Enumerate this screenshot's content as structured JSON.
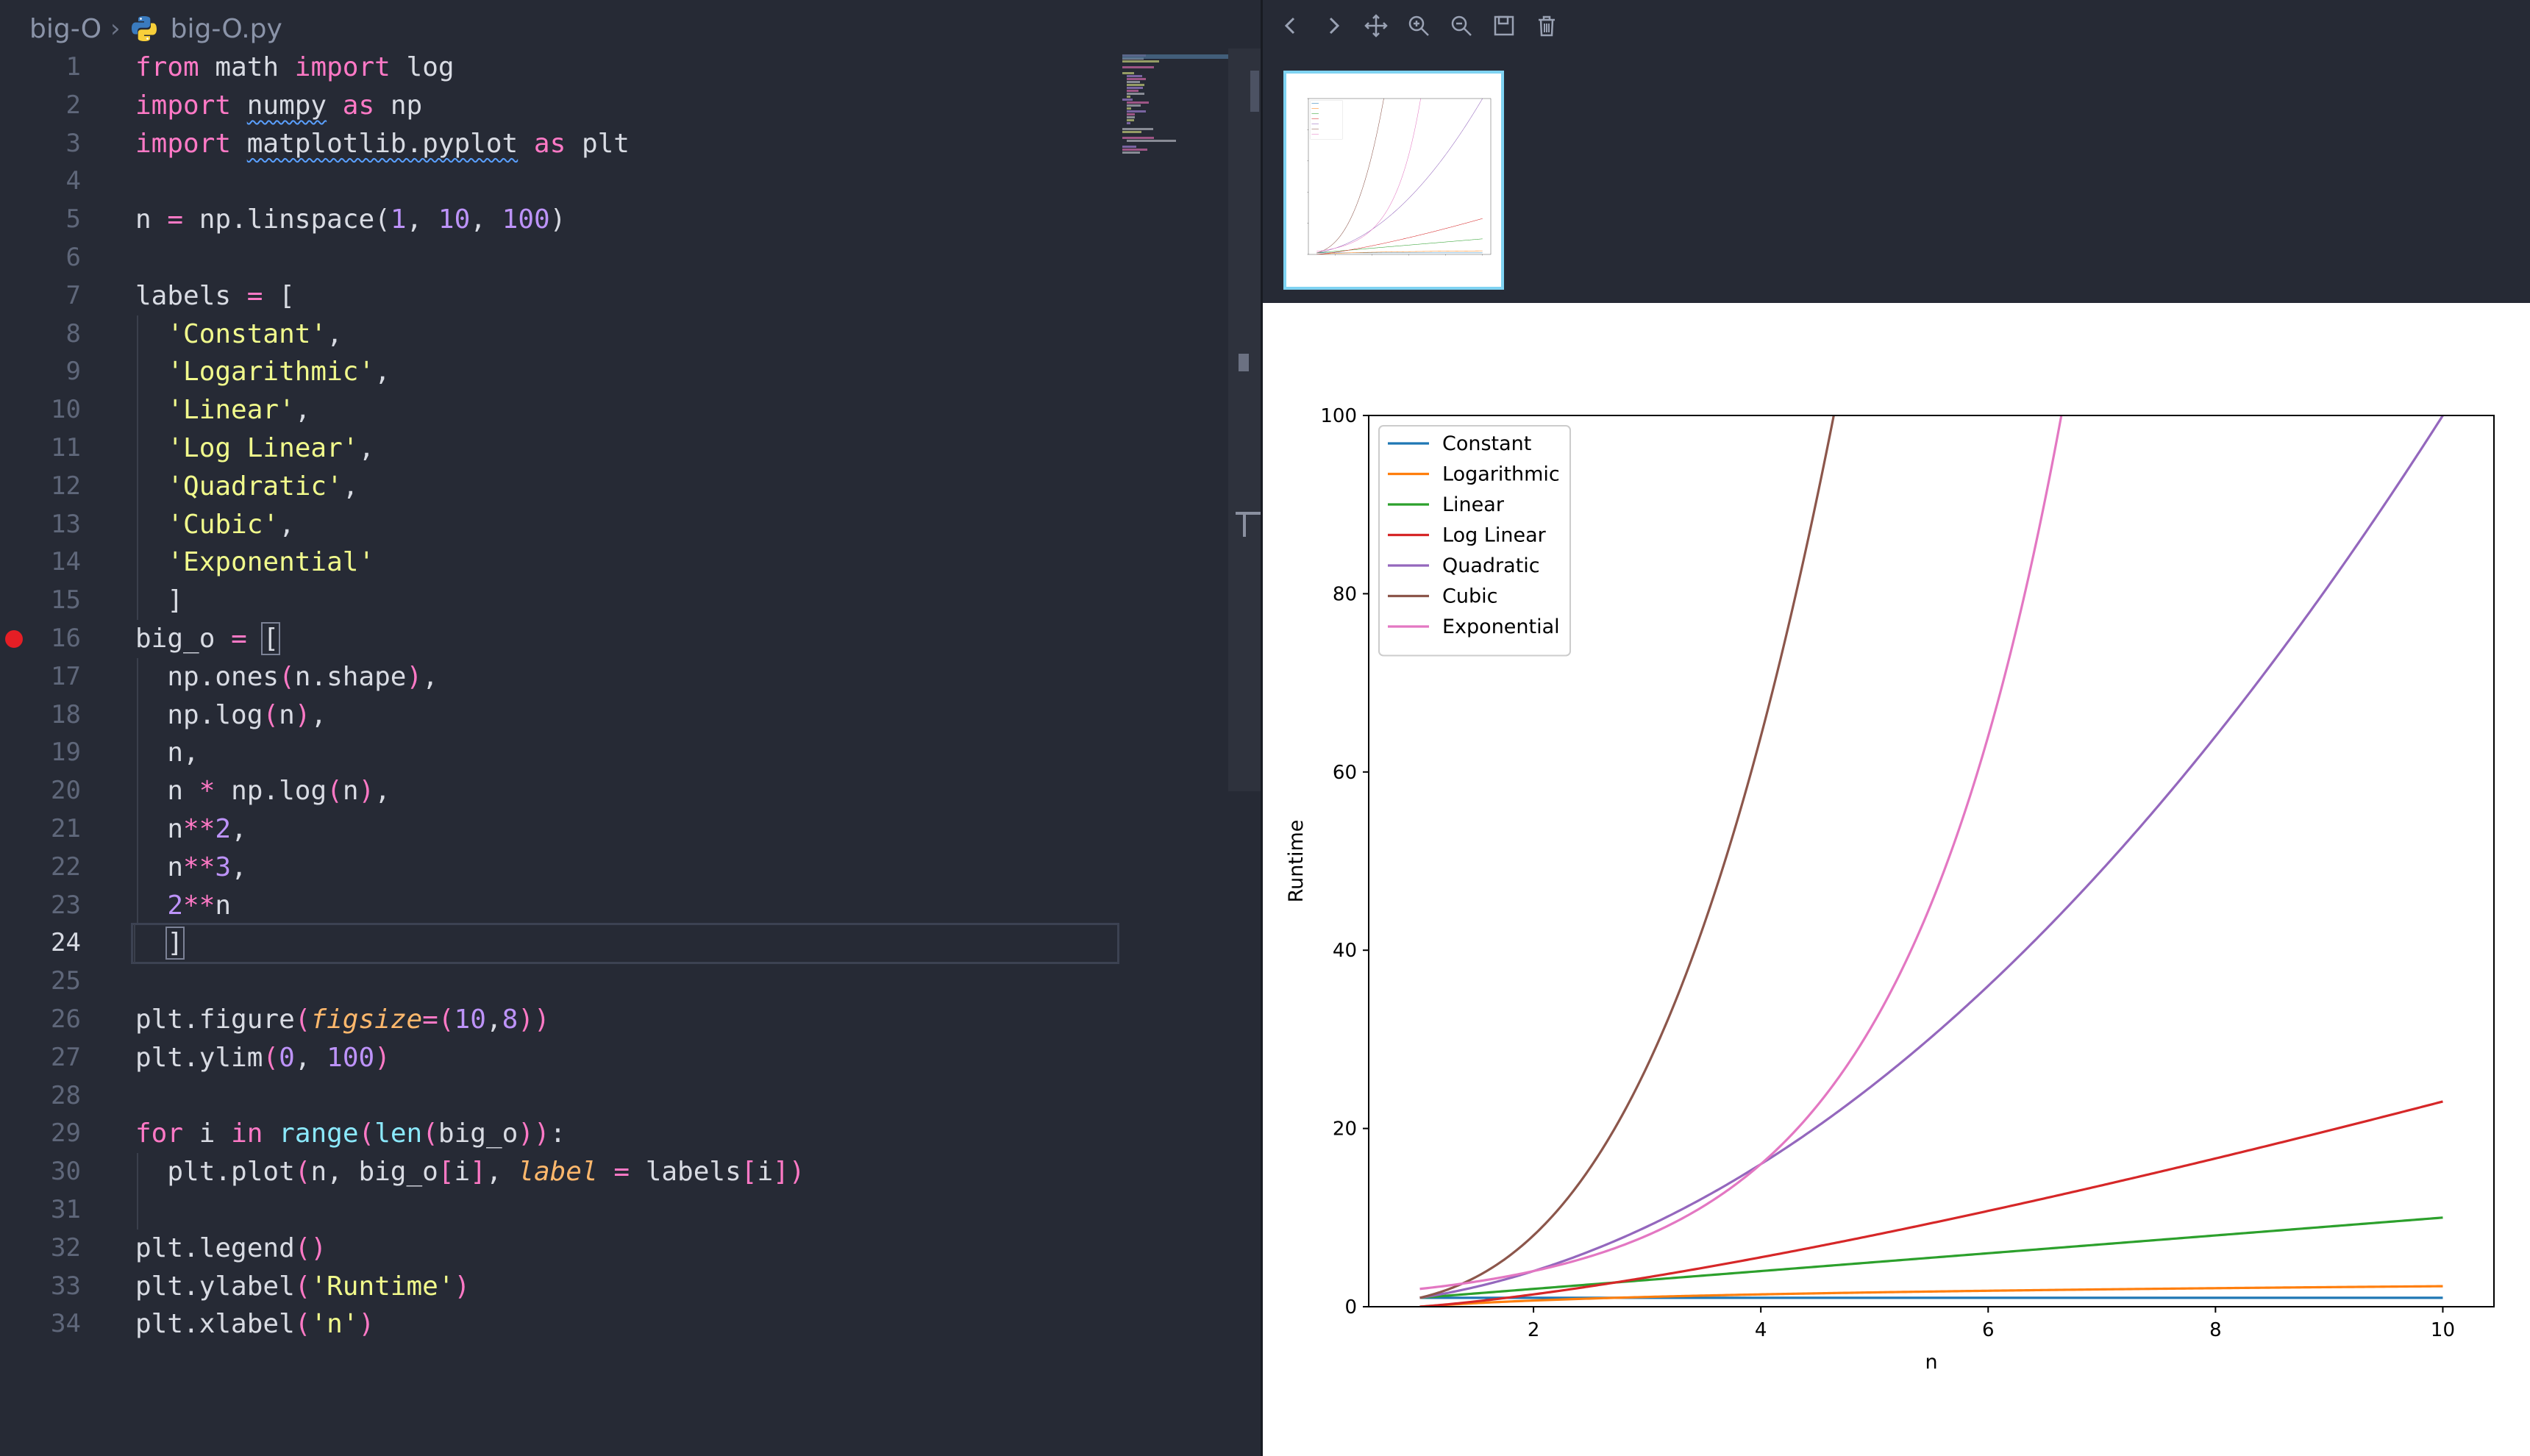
{
  "breadcrumb": {
    "folder": "big-O",
    "file": "big-O.py"
  },
  "editor": {
    "active_line": 24,
    "breakpoint_line": 16,
    "lines": [
      {
        "n": "1",
        "html": "<span class='kw'>from</span> <span class='id'>math</span> <span class='kw'>import</span> <span class='id'>log</span>"
      },
      {
        "n": "2",
        "html": "<span class='kw'>import</span> <span class='id squig'>numpy</span> <span class='kw'>as</span> <span class='id'>np</span>"
      },
      {
        "n": "3",
        "html": "<span class='kw'>import</span> <span class='id squig'>matplotlib.pyplot</span> <span class='kw'>as</span> <span class='id'>plt</span>"
      },
      {
        "n": "4",
        "html": ""
      },
      {
        "n": "5",
        "html": "<span class='id'>n</span> <span class='op'>=</span> <span class='id'>np.linspace</span><span class='id'>(</span><span class='num'>1</span><span class='id'>,</span> <span class='num'>10</span><span class='id'>,</span> <span class='num'>100</span><span class='id'>)</span>"
      },
      {
        "n": "6",
        "html": ""
      },
      {
        "n": "7",
        "html": "<span class='id'>labels</span> <span class='op'>=</span> <span class='id'>[</span>"
      },
      {
        "n": "8",
        "html": "  <span class='str'>'Constant'</span><span class='id'>,</span>",
        "guide": true
      },
      {
        "n": "9",
        "html": "  <span class='str'>'Logarithmic'</span><span class='id'>,</span>",
        "guide": true
      },
      {
        "n": "10",
        "html": "  <span class='str'>'Linear'</span><span class='id'>,</span>",
        "guide": true
      },
      {
        "n": "11",
        "html": "  <span class='str'>'Log Linear'</span><span class='id'>,</span>",
        "guide": true
      },
      {
        "n": "12",
        "html": "  <span class='str'>'Quadratic'</span><span class='id'>,</span>",
        "guide": true
      },
      {
        "n": "13",
        "html": "  <span class='str'>'Cubic'</span><span class='id'>,</span>",
        "guide": true
      },
      {
        "n": "14",
        "html": "  <span class='str'>'Exponential'</span>",
        "guide": true
      },
      {
        "n": "15",
        "html": "  <span class='id'>]</span>",
        "guide": true
      },
      {
        "n": "16",
        "html": "<span class='id'>big_o</span> <span class='op'>=</span> <span class='id bracket-box'>[</span>"
      },
      {
        "n": "17",
        "html": "  <span class='id'>np.ones</span><span class='par'>(</span><span class='id'>n.shape</span><span class='par'>)</span><span class='id'>,</span>",
        "guide": true
      },
      {
        "n": "18",
        "html": "  <span class='id'>np.log</span><span class='par'>(</span><span class='id'>n</span><span class='par'>)</span><span class='id'>,</span>",
        "guide": true
      },
      {
        "n": "19",
        "html": "  <span class='id'>n,</span>",
        "guide": true
      },
      {
        "n": "20",
        "html": "  <span class='id'>n</span> <span class='op'>*</span> <span class='id'>np.log</span><span class='par'>(</span><span class='id'>n</span><span class='par'>)</span><span class='id'>,</span>",
        "guide": true
      },
      {
        "n": "21",
        "html": "  <span class='id'>n</span><span class='op'>**</span><span class='num'>2</span><span class='id'>,</span>",
        "guide": true
      },
      {
        "n": "22",
        "html": "  <span class='id'>n</span><span class='op'>**</span><span class='num'>3</span><span class='id'>,</span>",
        "guide": true
      },
      {
        "n": "23",
        "html": "  <span class='num'>2</span><span class='op'>**</span><span class='id'>n</span>",
        "guide": true
      },
      {
        "n": "24",
        "html": "  <span class='id bracket-box'>]</span>",
        "guide": true
      },
      {
        "n": "25",
        "html": ""
      },
      {
        "n": "26",
        "html": "<span class='id'>plt.figure</span><span class='par'>(</span><span class='prm'>figsize</span><span class='op'>=</span><span class='par'>(</span><span class='num'>10</span><span class='id'>,</span><span class='num'>8</span><span class='par'>))</span>"
      },
      {
        "n": "27",
        "html": "<span class='id'>plt.ylim</span><span class='par'>(</span><span class='num'>0</span><span class='id'>,</span> <span class='num'>100</span><span class='par'>)</span>"
      },
      {
        "n": "28",
        "html": ""
      },
      {
        "n": "29",
        "html": "<span class='kw'>for</span> <span class='id'>i</span> <span class='kw'>in</span> <span class='bi'>range</span><span class='par'>(</span><span class='bi'>len</span><span class='par'>(</span><span class='id'>big_o</span><span class='par'>))</span><span class='id'>:</span>"
      },
      {
        "n": "30",
        "html": "  <span class='id'>plt.plot</span><span class='par'>(</span><span class='id'>n, big_o</span><span class='par'>[</span><span class='id'>i</span><span class='par'>]</span><span class='id'>,</span> <span class='prm'>label</span> <span class='op'>=</span> <span class='id'>labels</span><span class='par'>[</span><span class='id'>i</span><span class='par'>])</span>",
        "guide": true
      },
      {
        "n": "31",
        "html": "",
        "guide": true
      },
      {
        "n": "32",
        "html": "<span class='id'>plt.legend</span><span class='par'>()</span>"
      },
      {
        "n": "33",
        "html": "<span class='id'>plt.ylabel</span><span class='par'>(</span><span class='str'>'Runtime'</span><span class='par'>)</span>"
      },
      {
        "n": "34",
        "html": "<span class='id'>plt.xlabel</span><span class='par'>(</span><span class='str'>'n'</span><span class='par'>)</span>"
      }
    ]
  },
  "toolbar": {
    "icons": [
      "chevron-left-icon",
      "chevron-right-icon",
      "move-icon",
      "zoom-in-icon",
      "zoom-out-icon",
      "save-icon",
      "trash-icon"
    ]
  },
  "chart_data": {
    "type": "line",
    "title": "",
    "xlabel": "n",
    "ylabel": "Runtime",
    "xlim": [
      0.55,
      10.45
    ],
    "ylim": [
      0,
      100
    ],
    "xticks": [
      2,
      4,
      6,
      8,
      10
    ],
    "yticks": [
      0,
      20,
      40,
      60,
      80,
      100
    ],
    "legend_position": "top-left",
    "grid": false,
    "x_from": 1,
    "x_to": 10,
    "series": [
      {
        "name": "Constant",
        "color": "#1f77b4",
        "func": "constant"
      },
      {
        "name": "Logarithmic",
        "color": "#ff7f0e",
        "func": "log"
      },
      {
        "name": "Linear",
        "color": "#2ca02c",
        "func": "linear"
      },
      {
        "name": "Log Linear",
        "color": "#d62728",
        "func": "nlogn"
      },
      {
        "name": "Quadratic",
        "color": "#9467bd",
        "func": "square"
      },
      {
        "name": "Cubic",
        "color": "#8c564b",
        "func": "cube"
      },
      {
        "name": "Exponential",
        "color": "#e377c2",
        "func": "exp2"
      }
    ]
  }
}
